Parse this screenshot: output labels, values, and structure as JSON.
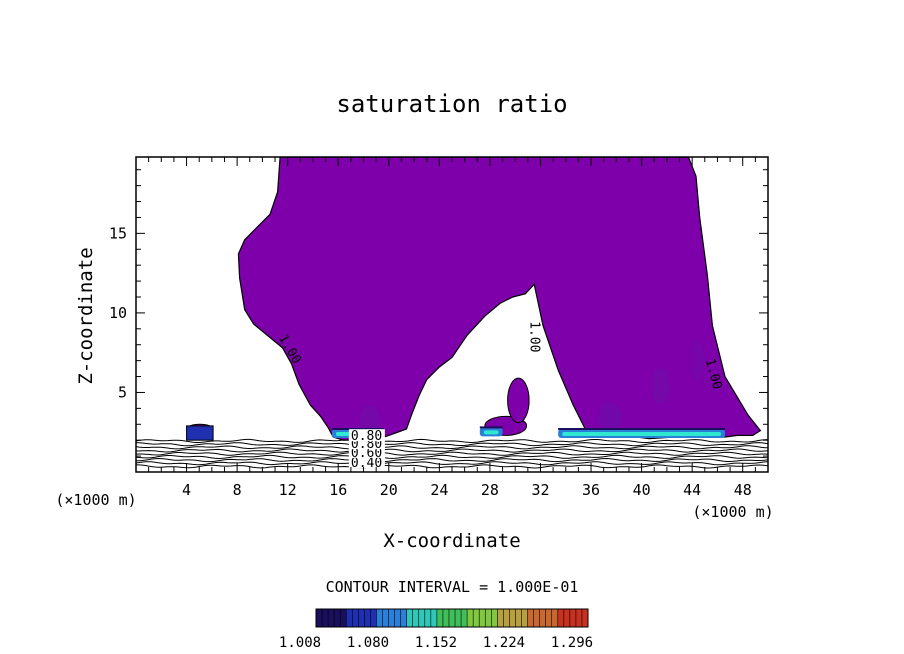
{
  "chart_data": {
    "type": "contour",
    "title": "saturation ratio",
    "xlabel": "X-coordinate",
    "ylabel": "Z-coordinate",
    "x_unit_left": "(×1000 m)",
    "x_unit_right": "(×1000 m)",
    "xlim": [
      0,
      50
    ],
    "ylim": [
      0,
      19.8
    ],
    "x_ticks": [
      4,
      8,
      12,
      16,
      20,
      24,
      28,
      32,
      36,
      40,
      44,
      48
    ],
    "y_ticks": [
      5,
      10,
      15
    ],
    "contour_interval_text": "CONTOUR INTERVAL = 1.000E-01",
    "colorbar": {
      "labels": [
        "1.008",
        "1.080",
        "1.152",
        "1.224",
        "1.296"
      ],
      "colors": [
        "#1a0f5c",
        "#1e2fb0",
        "#2a7fd8",
        "#2fc8b8",
        "#3fbf5a",
        "#7fc840",
        "#b8a040",
        "#c86830",
        "#c83020"
      ]
    },
    "fill_color": "#7e00aa",
    "saturated_region": {
      "level": 1.0,
      "outline": [
        [
          11.4,
          19.8
        ],
        [
          11.2,
          17.6
        ],
        [
          10.6,
          16.2
        ],
        [
          9.6,
          15.4
        ],
        [
          8.6,
          14.6
        ],
        [
          8.1,
          13.7
        ],
        [
          8.2,
          12.2
        ],
        [
          8.6,
          10.2
        ],
        [
          9.3,
          9.3
        ],
        [
          11.6,
          7.8
        ],
        [
          12.3,
          6.8
        ],
        [
          12.9,
          5.5
        ],
        [
          13.8,
          4.2
        ],
        [
          14.6,
          3.5
        ],
        [
          15.2,
          2.8
        ],
        [
          15.6,
          2.2
        ],
        [
          16.4,
          2.0
        ],
        [
          18.8,
          2.0
        ],
        [
          20.0,
          2.3
        ],
        [
          21.4,
          2.7
        ],
        [
          21.8,
          3.6
        ],
        [
          22.4,
          4.8
        ],
        [
          23.0,
          5.8
        ],
        [
          24.0,
          6.6
        ],
        [
          25.0,
          7.2
        ],
        [
          26.2,
          8.6
        ],
        [
          27.6,
          9.8
        ],
        [
          28.8,
          10.6
        ],
        [
          29.8,
          11.0
        ],
        [
          30.8,
          11.2
        ],
        [
          31.5,
          11.8
        ],
        [
          32.2,
          9.2
        ],
        [
          33.4,
          6.4
        ],
        [
          34.6,
          4.2
        ],
        [
          35.6,
          2.6
        ],
        [
          36.6,
          2.2
        ],
        [
          38.6,
          2.3
        ],
        [
          40.6,
          2.1
        ],
        [
          42.6,
          2.2
        ],
        [
          44.6,
          2.2
        ],
        [
          46.6,
          2.2
        ],
        [
          47.6,
          2.3
        ],
        [
          48.8,
          2.3
        ],
        [
          49.4,
          2.6
        ],
        [
          48.4,
          3.6
        ],
        [
          46.6,
          6.0
        ],
        [
          45.6,
          9.2
        ],
        [
          45.2,
          12.4
        ],
        [
          44.6,
          16.0
        ],
        [
          44.3,
          18.6
        ],
        [
          43.7,
          19.8
        ]
      ]
    },
    "low_contours": {
      "levels": [
        0.4,
        0.5,
        0.6,
        0.7,
        0.8,
        0.9
      ],
      "labels": [
        "0.40",
        "0.60",
        "0.80",
        "0.80"
      ],
      "line_labels": [
        "1.00",
        "1.00",
        "1.00"
      ]
    },
    "high_ratio_patches": [
      {
        "x0": 15.5,
        "x1": 19.6,
        "y": 2.2
      },
      {
        "x0": 27.2,
        "x1": 29.0,
        "y": 2.3
      },
      {
        "x0": 33.4,
        "x1": 46.6,
        "y": 2.2
      }
    ],
    "small_cells": [
      {
        "x": 4.0,
        "y": 2.4,
        "w": 2.1,
        "h": 0.6
      },
      {
        "x": 27.6,
        "y": 2.3,
        "w": 3.3,
        "h": 1.2
      },
      {
        "x": 29.4,
        "y": 3.1,
        "w": 1.7,
        "h": 2.8
      }
    ]
  }
}
